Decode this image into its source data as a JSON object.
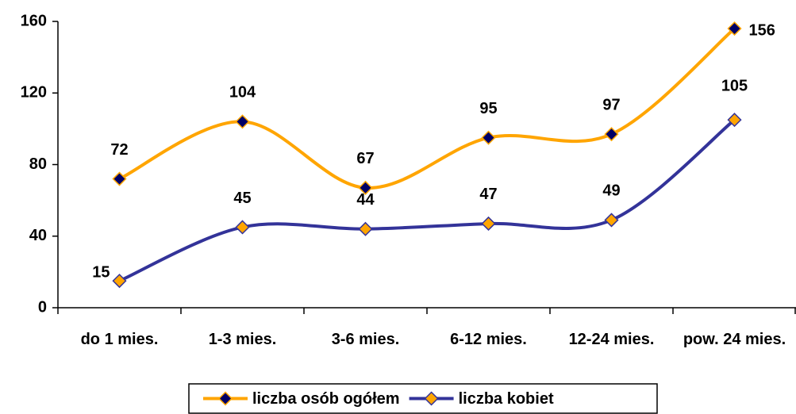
{
  "chart_data": {
    "type": "line",
    "categories": [
      "do 1 mies.",
      "1-3 mies.",
      "3-6 mies.",
      "6-12 mies.",
      "12-24 mies.",
      "pow. 24 mies."
    ],
    "series": [
      {
        "name": "liczba osób ogółem",
        "color": "#FFA500",
        "marker_color": "#000066",
        "values": [
          72,
          104,
          67,
          95,
          97,
          156
        ]
      },
      {
        "name": "liczba kobiet",
        "color": "#333399",
        "marker_color": "#FFA500",
        "values": [
          15,
          45,
          44,
          47,
          49,
          105
        ]
      }
    ],
    "ylim": [
      0,
      160
    ],
    "yticks": [
      0,
      40,
      80,
      120,
      160
    ],
    "grid": false,
    "smooth": true,
    "legend": "bottom"
  }
}
